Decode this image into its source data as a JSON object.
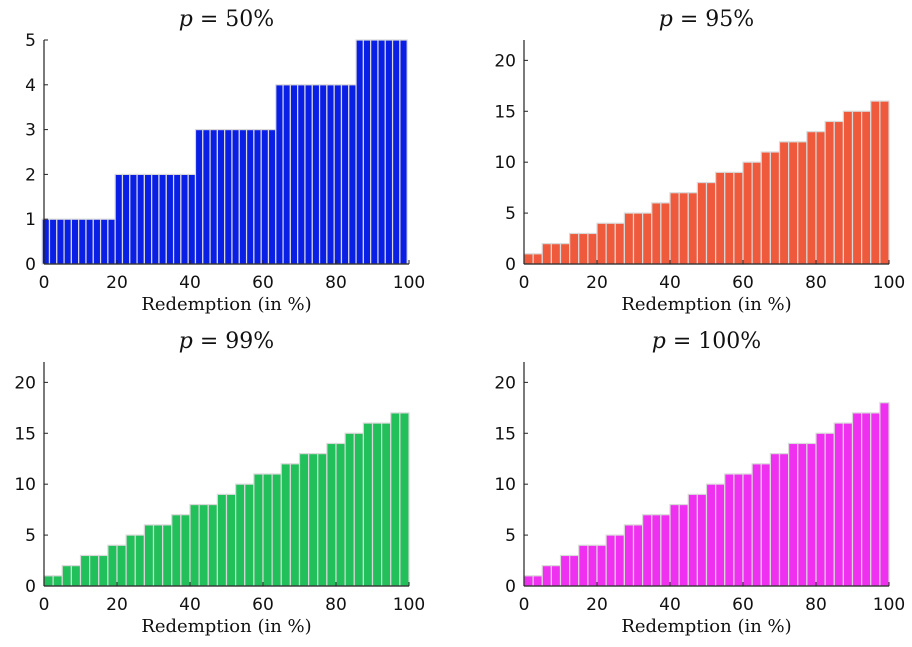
{
  "chart_data": [
    {
      "type": "bar",
      "title_var": "p",
      "title_rest": " = 50%",
      "xlabel": "Redemption (in %)",
      "ylabel": "",
      "color": "#0a1fe6",
      "xlim": [
        0,
        100
      ],
      "ylim": [
        0,
        5
      ],
      "xticks": [
        0,
        20,
        40,
        60,
        80,
        100
      ],
      "yticks": [
        0,
        1,
        2,
        3,
        4,
        5
      ],
      "x": [
        1.5,
        3.5,
        5.5,
        7.5,
        9.5,
        11.5,
        13.5,
        15.5,
        17.5,
        19.5,
        21.5,
        23.5,
        25.5,
        27.5,
        29.5,
        31.5,
        33.5,
        35.5,
        37.5,
        39.5,
        41.5,
        43.5,
        45.5,
        47.5,
        49.5,
        51.5,
        53.5,
        55.5,
        57.5,
        59.5,
        61.5,
        63.5,
        65.5,
        67.5,
        69.5,
        71.5,
        73.5,
        75.5,
        77.5,
        79.5,
        81.5,
        83.5,
        85.5,
        87.5,
        89.5,
        91.5,
        93.5,
        95.5,
        97.5,
        99.5
      ],
      "values": [
        1,
        1,
        1,
        1,
        1,
        1,
        1,
        1,
        1,
        1,
        2,
        2,
        2,
        2,
        2,
        2,
        2,
        2,
        2,
        2,
        2,
        3,
        3,
        3,
        3,
        3,
        3,
        3,
        3,
        3,
        3,
        3,
        4,
        4,
        4,
        4,
        4,
        4,
        4,
        4,
        4,
        4,
        4,
        5,
        5,
        5,
        5,
        5,
        5,
        5
      ]
    },
    {
      "type": "bar",
      "title_var": "p",
      "title_rest": " = 95%",
      "xlabel": "Redemption (in %)",
      "ylabel": "",
      "color": "#f05a3c",
      "xlim": [
        0,
        100
      ],
      "ylim": [
        0,
        22
      ],
      "xticks": [
        0,
        20,
        40,
        60,
        80,
        100
      ],
      "yticks": [
        0,
        5,
        10,
        15,
        20
      ],
      "x": [
        2.5,
        5,
        7.5,
        10,
        12.5,
        15,
        17.5,
        20,
        22.5,
        25,
        27.5,
        30,
        32.5,
        35,
        37.5,
        40,
        42.5,
        45,
        47.5,
        50,
        52.5,
        55,
        57.5,
        60,
        62.5,
        65,
        67.5,
        70,
        72.5,
        75,
        77.5,
        80,
        82.5,
        85,
        87.5,
        90,
        92.5,
        95,
        97.5,
        100
      ],
      "values": [
        1,
        1,
        2,
        2,
        2,
        3,
        3,
        3,
        4,
        4,
        4,
        5,
        5,
        5,
        6,
        6,
        7,
        7,
        7,
        8,
        8,
        9,
        9,
        9,
        10,
        10,
        11,
        11,
        12,
        12,
        12,
        13,
        13,
        14,
        14,
        15,
        15,
        15,
        16,
        16
      ]
    },
    {
      "type": "bar",
      "title_var": "p",
      "title_rest": " = 99%",
      "xlabel": "Redemption (in %)",
      "ylabel": "",
      "color": "#22c05a",
      "xlim": [
        0,
        100
      ],
      "ylim": [
        0,
        22
      ],
      "xticks": [
        0,
        20,
        40,
        60,
        80,
        100
      ],
      "yticks": [
        0,
        5,
        10,
        15,
        20
      ],
      "x": [
        2.5,
        5,
        7.5,
        10,
        12.5,
        15,
        17.5,
        20,
        22.5,
        25,
        27.5,
        30,
        32.5,
        35,
        37.5,
        40,
        42.5,
        45,
        47.5,
        50,
        52.5,
        55,
        57.5,
        60,
        62.5,
        65,
        67.5,
        70,
        72.5,
        75,
        77.5,
        80,
        82.5,
        85,
        87.5,
        90,
        92.5,
        95,
        97.5,
        100
      ],
      "values": [
        1,
        1,
        2,
        2,
        3,
        3,
        3,
        4,
        4,
        5,
        5,
        6,
        6,
        6,
        7,
        7,
        8,
        8,
        8,
        9,
        9,
        10,
        10,
        11,
        11,
        11,
        12,
        12,
        13,
        13,
        13,
        14,
        14,
        15,
        15,
        16,
        16,
        16,
        17,
        17
      ]
    },
    {
      "type": "bar",
      "title_var": "p",
      "title_rest": " = 100%",
      "xlabel": "Redemption (in %)",
      "ylabel": "",
      "color": "#f030f0",
      "xlim": [
        0,
        100
      ],
      "ylim": [
        0,
        22
      ],
      "xticks": [
        0,
        20,
        40,
        60,
        80,
        100
      ],
      "yticks": [
        0,
        5,
        10,
        15,
        20
      ],
      "x": [
        2.5,
        5,
        7.5,
        10,
        12.5,
        15,
        17.5,
        20,
        22.5,
        25,
        27.5,
        30,
        32.5,
        35,
        37.5,
        40,
        42.5,
        45,
        47.5,
        50,
        52.5,
        55,
        57.5,
        60,
        62.5,
        65,
        67.5,
        70,
        72.5,
        75,
        77.5,
        80,
        82.5,
        85,
        87.5,
        90,
        92.5,
        95,
        97.5,
        100
      ],
      "values": [
        1,
        1,
        2,
        2,
        3,
        3,
        4,
        4,
        4,
        5,
        5,
        6,
        6,
        7,
        7,
        7,
        8,
        8,
        9,
        9,
        10,
        10,
        11,
        11,
        11,
        12,
        12,
        13,
        13,
        14,
        14,
        14,
        15,
        15,
        16,
        16,
        17,
        17,
        17,
        18
      ]
    }
  ]
}
